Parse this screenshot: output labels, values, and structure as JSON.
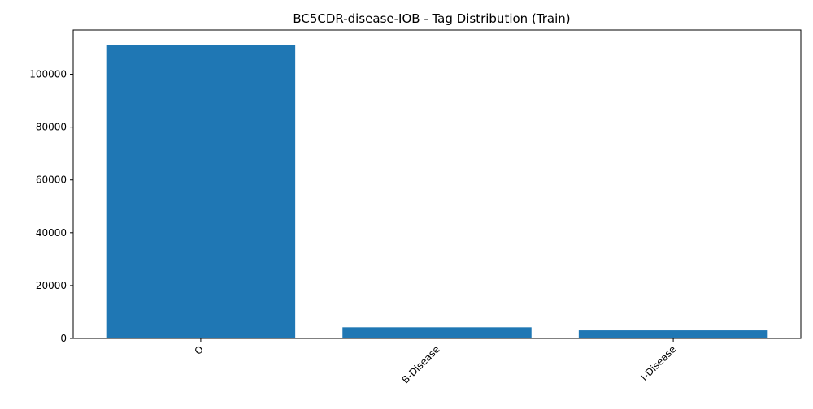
{
  "chart_data": {
    "type": "bar",
    "title": "BC5CDR-disease-IOB - Tag Distribution (Train)",
    "xlabel": "",
    "ylabel": "",
    "categories": [
      "O",
      "B-Disease",
      "I-Disease"
    ],
    "values": [
      111200,
      4200,
      3050
    ],
    "ylim": [
      0,
      116760
    ],
    "yticks": [
      0,
      20000,
      40000,
      60000,
      80000,
      100000
    ],
    "ytick_labels": [
      "0",
      "20000",
      "40000",
      "60000",
      "80000",
      "100000"
    ],
    "x_tick_rotation_deg": 45,
    "grid": false,
    "legend": "none",
    "bar_color": "#1f77b4"
  }
}
